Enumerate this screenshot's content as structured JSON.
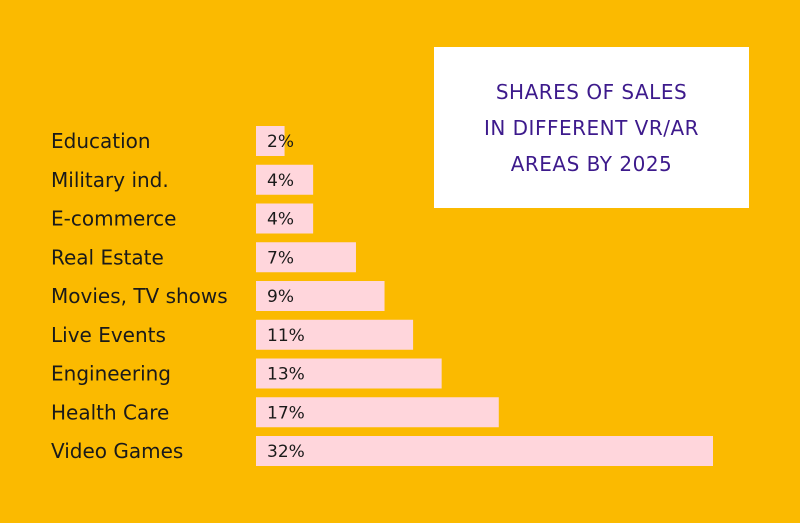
{
  "colors": {
    "background": "#fbba00",
    "bar": "#ffd6dc",
    "title_box": "#ffffff",
    "title_text": "#3d1a8c",
    "label_text": "#1a1a1a"
  },
  "title_lines": [
    "SHARES OF SALES",
    "IN DIFFERENT VR/AR",
    "AREAS BY 2025"
  ],
  "chart_data": {
    "type": "bar",
    "orientation": "horizontal",
    "title": "SHARES OF SALES IN DIFFERENT VR/AR AREAS BY 2025",
    "categories": [
      "Education",
      "Military ind.",
      "E-commerce",
      "Real Estate",
      "Movies, TV shows",
      "Live Events",
      "Engineering",
      "Health Care",
      "Video Games"
    ],
    "values": [
      2,
      4,
      4,
      7,
      9,
      11,
      13,
      17,
      32
    ],
    "value_labels": [
      "2%",
      "4%",
      "4%",
      "7%",
      "9%",
      "11%",
      "13%",
      "17%",
      "32%"
    ],
    "unit": "%",
    "xlim": [
      0,
      32
    ],
    "grid": false,
    "legend": "none"
  }
}
